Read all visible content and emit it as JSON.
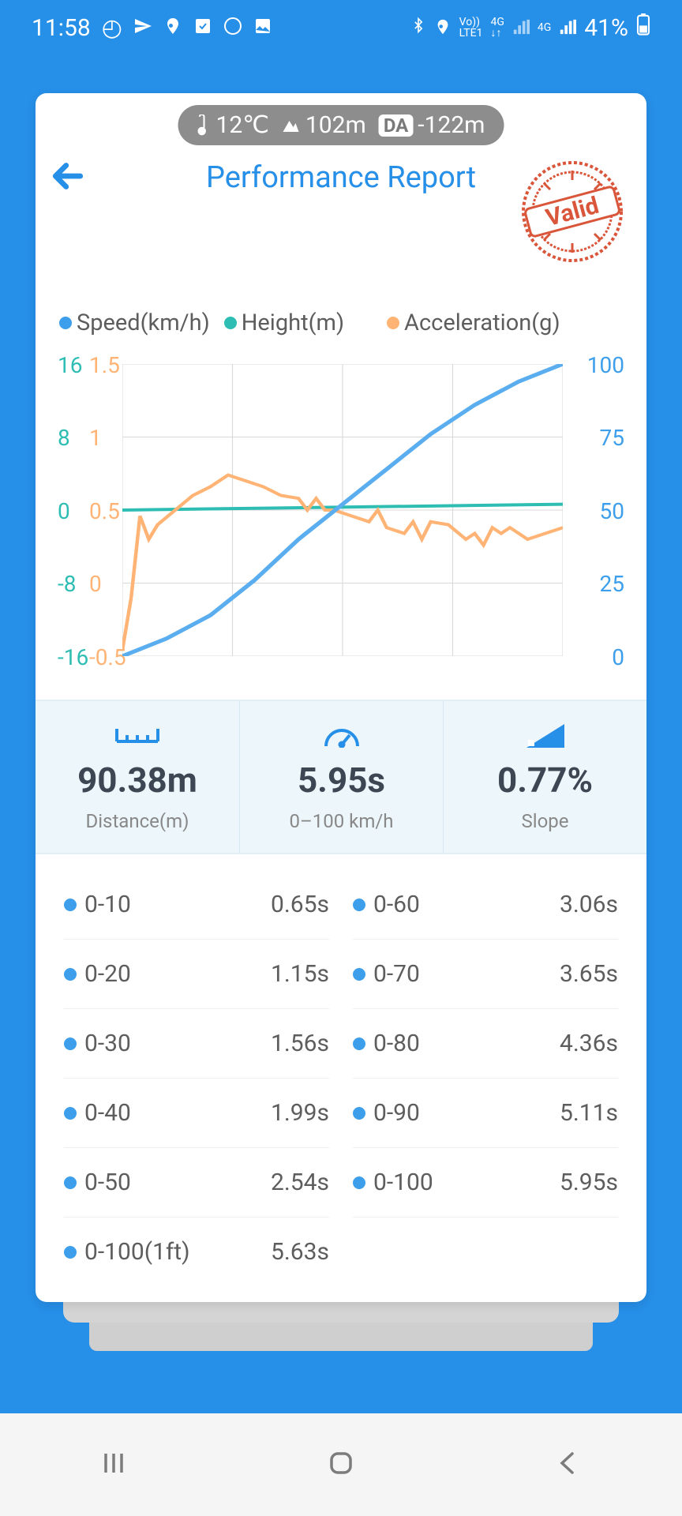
{
  "status": {
    "time": "11:58",
    "battery": "41%"
  },
  "pill": {
    "temp": "12℃",
    "altitude": "102m",
    "da_label": "DA",
    "da_value": "-122m"
  },
  "title": "Performance Report",
  "stamp": "Valid",
  "legend": {
    "speed": {
      "label": "Speed(km/h)",
      "color": "#3d9feb"
    },
    "height": {
      "label": "Height(m)",
      "color": "#2dbdb3"
    },
    "accel": {
      "label": "Acceleration(g)",
      "color": "#ffb374"
    }
  },
  "chart": {
    "left1_ticks": [
      "16",
      "8",
      "0",
      "-8",
      "-16"
    ],
    "left2_ticks": [
      "1.5",
      "1",
      "0.5",
      "0",
      "-0.5"
    ],
    "right_ticks": [
      "100",
      "75",
      "50",
      "25",
      "0"
    ],
    "grid_color": "#d9d9d9",
    "speed_color": "#5aaef0",
    "height_color": "#2dbdb3",
    "accel_color": "#ffb374",
    "speed_points": [
      [
        0,
        0
      ],
      [
        10,
        6
      ],
      [
        20,
        14
      ],
      [
        30,
        26
      ],
      [
        40,
        40
      ],
      [
        50,
        52
      ],
      [
        55,
        58
      ],
      [
        60,
        64
      ],
      [
        70,
        76
      ],
      [
        80,
        86
      ],
      [
        90,
        94
      ],
      [
        100,
        100
      ]
    ],
    "height_points": [
      [
        0,
        50
      ],
      [
        100,
        52
      ]
    ],
    "accel_points": [
      [
        0,
        2
      ],
      [
        2,
        20
      ],
      [
        4,
        48
      ],
      [
        6,
        40
      ],
      [
        8,
        45
      ],
      [
        12,
        50
      ],
      [
        16,
        55
      ],
      [
        20,
        58
      ],
      [
        24,
        62
      ],
      [
        28,
        60
      ],
      [
        32,
        58
      ],
      [
        36,
        55
      ],
      [
        40,
        54
      ],
      [
        42,
        50
      ],
      [
        44,
        54
      ],
      [
        46,
        50
      ],
      [
        48,
        50
      ],
      [
        52,
        48
      ],
      [
        56,
        46
      ],
      [
        58,
        50
      ],
      [
        60,
        44
      ],
      [
        64,
        42
      ],
      [
        66,
        46
      ],
      [
        68,
        40
      ],
      [
        70,
        46
      ],
      [
        74,
        45
      ],
      [
        78,
        40
      ],
      [
        80,
        42
      ],
      [
        82,
        38
      ],
      [
        84,
        44
      ],
      [
        86,
        42
      ],
      [
        88,
        44
      ],
      [
        92,
        40
      ],
      [
        96,
        42
      ],
      [
        100,
        44
      ]
    ]
  },
  "metrics": {
    "distance": {
      "value": "90.38m",
      "label": "Distance(m)"
    },
    "time": {
      "value": "5.95s",
      "label": "0–100 km/h"
    },
    "slope": {
      "value": "0.77%",
      "label": "Slope"
    }
  },
  "splits_left": [
    {
      "range": "0-10",
      "time": "0.65s"
    },
    {
      "range": "0-20",
      "time": "1.15s"
    },
    {
      "range": "0-30",
      "time": "1.56s"
    },
    {
      "range": "0-40",
      "time": "1.99s"
    },
    {
      "range": "0-50",
      "time": "2.54s"
    },
    {
      "range": "0-100(1ft)",
      "time": "5.63s"
    }
  ],
  "splits_right": [
    {
      "range": "0-60",
      "time": "3.06s"
    },
    {
      "range": "0-70",
      "time": "3.65s"
    },
    {
      "range": "0-80",
      "time": "4.36s"
    },
    {
      "range": "0-90",
      "time": "5.11s"
    },
    {
      "range": "0-100",
      "time": "5.95s"
    }
  ]
}
